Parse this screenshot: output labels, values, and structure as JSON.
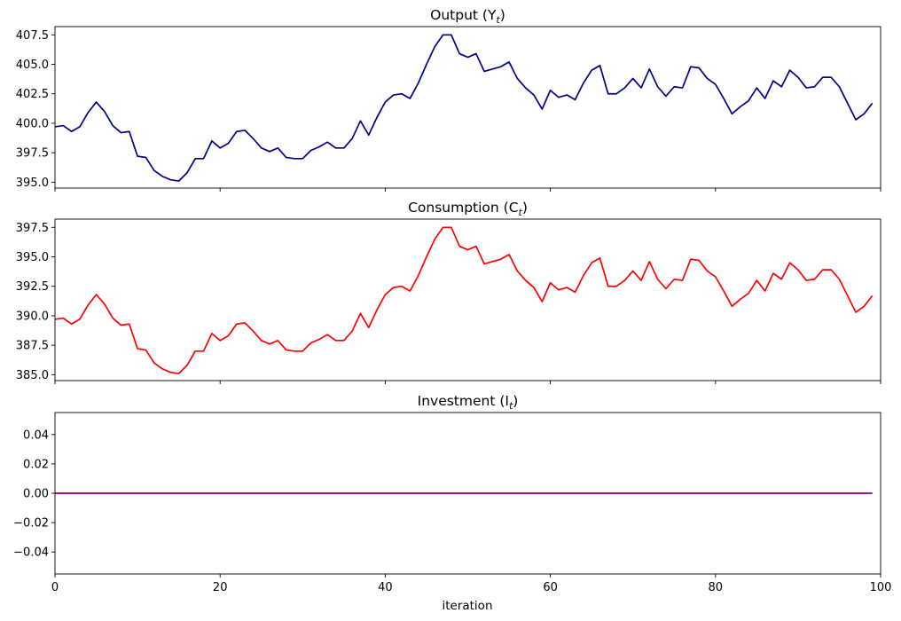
{
  "figure": {
    "xlabel": "iteration"
  },
  "chart_data": [
    {
      "type": "line",
      "title": "Output (Y",
      "title_sub": "t",
      "title_suffix": ")",
      "xlabel": "",
      "ylabel": "",
      "xlim": [
        0,
        100
      ],
      "ylim": [
        394.5,
        408.2
      ],
      "yticks": [
        395.0,
        397.5,
        400.0,
        402.5,
        405.0,
        407.5
      ],
      "ytick_labels": [
        "395.0",
        "397.5",
        "400.0",
        "402.5",
        "405.0",
        "407.5"
      ],
      "xticks": [
        0,
        20,
        40,
        60,
        80,
        100
      ],
      "show_xtick_labels": false,
      "grid": false,
      "color": "#00008b",
      "series": [
        {
          "x": [
            0,
            1,
            2,
            3,
            4,
            5,
            6,
            7,
            8,
            9,
            10,
            11,
            12,
            13,
            14,
            15,
            16,
            17,
            18,
            19,
            20,
            21,
            22,
            23,
            24,
            25,
            26,
            27,
            28,
            29,
            30,
            31,
            32,
            33,
            34,
            35,
            36,
            37,
            38,
            39,
            40,
            41,
            42,
            43,
            44,
            45,
            46,
            47,
            48,
            49,
            50,
            51,
            52,
            53,
            54,
            55,
            56,
            57,
            58,
            59,
            60,
            61,
            62,
            63,
            64,
            65,
            66,
            67,
            68,
            69,
            70,
            71,
            72,
            73,
            74,
            75,
            76,
            77,
            78,
            79,
            80,
            81,
            82,
            83,
            84,
            85,
            86,
            87,
            88,
            89,
            90,
            91,
            92,
            93,
            94,
            95,
            96,
            97,
            98,
            99
          ],
          "values": [
            399.7,
            399.8,
            399.3,
            399.7,
            400.9,
            401.8,
            401.0,
            399.8,
            399.2,
            399.3,
            397.2,
            397.1,
            396.0,
            395.5,
            395.2,
            395.1,
            395.8,
            397.0,
            397.0,
            398.5,
            397.9,
            398.3,
            399.3,
            399.4,
            398.7,
            397.9,
            397.6,
            397.9,
            397.1,
            397.0,
            397.0,
            397.7,
            398.0,
            398.4,
            397.9,
            397.9,
            398.7,
            400.2,
            399.0,
            400.5,
            401.8,
            402.4,
            402.5,
            402.1,
            403.4,
            405.0,
            406.5,
            407.5,
            407.5,
            405.9,
            405.6,
            405.9,
            404.4,
            404.6,
            404.8,
            405.2,
            403.8,
            403.0,
            402.4,
            401.2,
            402.8,
            402.2,
            402.4,
            402.0,
            403.4,
            404.5,
            404.9,
            402.5,
            402.5,
            403.0,
            403.8,
            403.0,
            404.6,
            403.1,
            402.3,
            403.1,
            403.0,
            404.8,
            404.7,
            403.8,
            403.3,
            402.1,
            400.8,
            401.4,
            401.9,
            403.0,
            402.1,
            403.6,
            403.1,
            404.5,
            403.9,
            403.0,
            403.1,
            403.9,
            403.9,
            403.1,
            401.7,
            400.3,
            400.8,
            401.7
          ]
        }
      ]
    },
    {
      "type": "line",
      "title": "Consumption (C",
      "title_sub": "t",
      "title_suffix": ")",
      "xlabel": "",
      "ylabel": "",
      "xlim": [
        0,
        100
      ],
      "ylim": [
        384.5,
        398.2
      ],
      "yticks": [
        385.0,
        387.5,
        390.0,
        392.5,
        395.0,
        397.5
      ],
      "ytick_labels": [
        "385.0",
        "387.5",
        "390.0",
        "392.5",
        "395.0",
        "397.5"
      ],
      "xticks": [
        0,
        20,
        40,
        60,
        80,
        100
      ],
      "show_xtick_labels": false,
      "grid": false,
      "color": "#ff0000",
      "series": [
        {
          "x": [
            0,
            1,
            2,
            3,
            4,
            5,
            6,
            7,
            8,
            9,
            10,
            11,
            12,
            13,
            14,
            15,
            16,
            17,
            18,
            19,
            20,
            21,
            22,
            23,
            24,
            25,
            26,
            27,
            28,
            29,
            30,
            31,
            32,
            33,
            34,
            35,
            36,
            37,
            38,
            39,
            40,
            41,
            42,
            43,
            44,
            45,
            46,
            47,
            48,
            49,
            50,
            51,
            52,
            53,
            54,
            55,
            56,
            57,
            58,
            59,
            60,
            61,
            62,
            63,
            64,
            65,
            66,
            67,
            68,
            69,
            70,
            71,
            72,
            73,
            74,
            75,
            76,
            77,
            78,
            79,
            80,
            81,
            82,
            83,
            84,
            85,
            86,
            87,
            88,
            89,
            90,
            91,
            92,
            93,
            94,
            95,
            96,
            97,
            98,
            99
          ],
          "values": [
            389.7,
            389.8,
            389.3,
            389.7,
            390.9,
            391.8,
            391.0,
            389.8,
            389.2,
            389.3,
            387.2,
            387.1,
            386.0,
            385.5,
            385.2,
            385.1,
            385.8,
            387.0,
            387.0,
            388.5,
            387.9,
            388.3,
            389.3,
            389.4,
            388.7,
            387.9,
            387.6,
            387.9,
            387.1,
            387.0,
            387.0,
            387.7,
            388.0,
            388.4,
            387.9,
            387.9,
            388.7,
            390.2,
            389.0,
            390.5,
            391.8,
            392.4,
            392.5,
            392.1,
            393.4,
            395.0,
            396.5,
            397.5,
            397.5,
            395.9,
            395.6,
            395.9,
            394.4,
            394.6,
            394.8,
            395.2,
            393.8,
            393.0,
            392.4,
            391.2,
            392.8,
            392.2,
            392.4,
            392.0,
            393.4,
            394.5,
            394.9,
            392.5,
            392.5,
            393.0,
            393.8,
            393.0,
            394.6,
            393.1,
            392.3,
            393.1,
            393.0,
            394.8,
            394.7,
            393.8,
            393.3,
            392.1,
            390.8,
            391.4,
            391.9,
            393.0,
            392.1,
            393.6,
            393.1,
            394.5,
            393.9,
            393.0,
            393.1,
            393.9,
            393.9,
            393.1,
            391.7,
            390.3,
            390.8,
            391.7
          ]
        }
      ]
    },
    {
      "type": "line",
      "title": "Investment (I",
      "title_sub": "t",
      "title_suffix": ")",
      "xlabel": "iteration",
      "ylabel": "",
      "xlim": [
        0,
        100
      ],
      "ylim": [
        -0.055,
        0.055
      ],
      "yticks": [
        -0.04,
        -0.02,
        0.0,
        0.02,
        0.04
      ],
      "ytick_labels": [
        "−0.04",
        "−0.02",
        "0.00",
        "0.02",
        "0.04"
      ],
      "xticks": [
        0,
        20,
        40,
        60,
        80,
        100
      ],
      "xtick_labels": [
        "0",
        "20",
        "40",
        "60",
        "80",
        "100"
      ],
      "show_xtick_labels": true,
      "grid": false,
      "color": "#800080",
      "series": [
        {
          "x": [
            0,
            99
          ],
          "values": [
            0.0,
            0.0
          ]
        }
      ]
    }
  ]
}
